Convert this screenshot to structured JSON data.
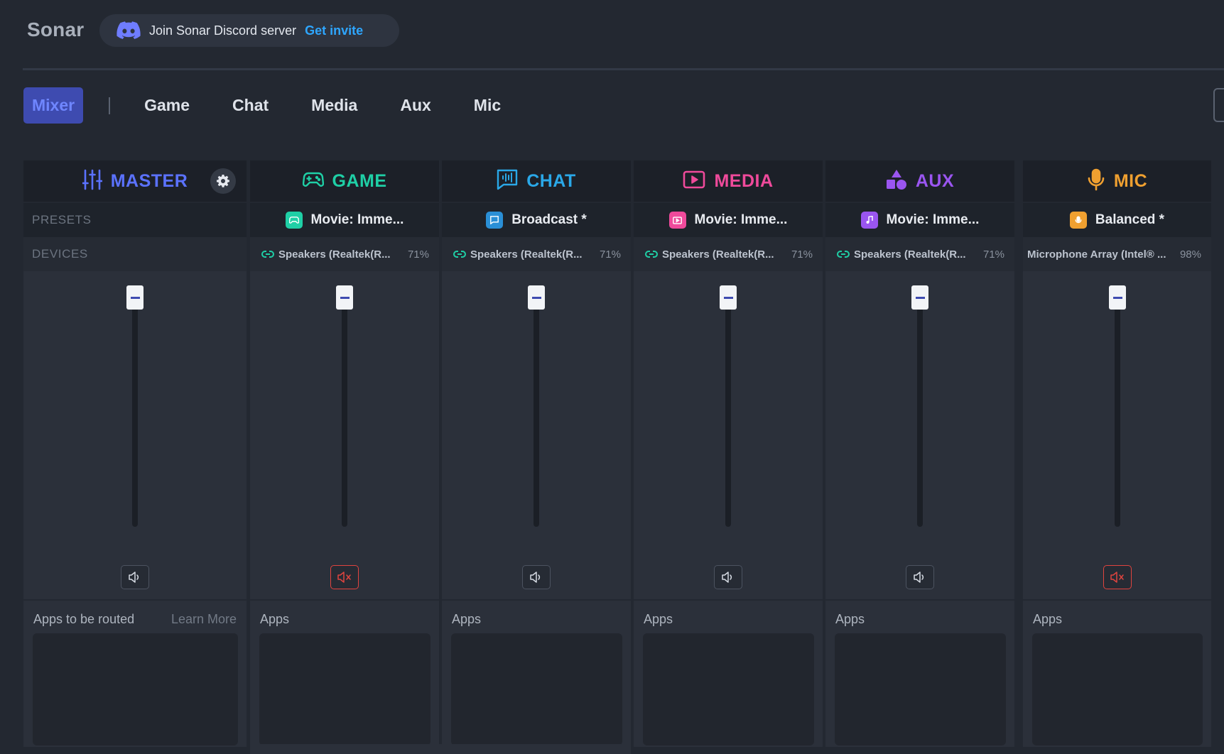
{
  "app": {
    "name": "Sonar",
    "discord_text": "Join Sonar Discord server",
    "discord_link": "Get invite"
  },
  "tabs": [
    {
      "label": "Mixer",
      "active": true
    },
    {
      "label": "Game"
    },
    {
      "label": "Chat"
    },
    {
      "label": "Media"
    },
    {
      "label": "Aux"
    },
    {
      "label": "Mic"
    }
  ],
  "side_labels": {
    "presets": "PRESETS",
    "devices": "DEVICES"
  },
  "colors": {
    "master": "#5b72ff",
    "game": "#1fcfa6",
    "chat": "#2aa8e8",
    "media": "#ef4a9b",
    "aux": "#9a55f0",
    "mic": "#f0a030",
    "muted": "#e0443f"
  },
  "strips": {
    "master": {
      "title": "MASTER",
      "icon": "sliders-icon",
      "apps_label": "Apps to be routed",
      "learn_more": "Learn More",
      "muted": false
    },
    "game": {
      "title": "GAME",
      "icon": "gamepad-icon",
      "preset": "Movie: Imme...",
      "device": "Speakers (Realtek(R...",
      "device_pct": "71%",
      "apps_label": "Apps",
      "muted": true
    },
    "chat": {
      "title": "CHAT",
      "icon": "chat-waveform-icon",
      "preset": "Broadcast *",
      "device": "Speakers (Realtek(R...",
      "device_pct": "71%",
      "apps_label": "Apps",
      "muted": false
    },
    "media": {
      "title": "MEDIA",
      "icon": "play-screen-icon",
      "preset": "Movie: Imme...",
      "device": "Speakers (Realtek(R...",
      "device_pct": "71%",
      "apps_label": "Apps",
      "muted": false
    },
    "aux": {
      "title": "AUX",
      "icon": "shapes-icon",
      "preset": "Movie: Imme...",
      "device": "Speakers (Realtek(R...",
      "device_pct": "71%",
      "apps_label": "Apps",
      "muted": false
    },
    "mic": {
      "title": "MIC",
      "icon": "microphone-icon",
      "preset": "Balanced *",
      "device": "Microphone Array (Intel® ...",
      "device_pct": "98%",
      "apps_label": "Apps",
      "muted": true
    }
  }
}
